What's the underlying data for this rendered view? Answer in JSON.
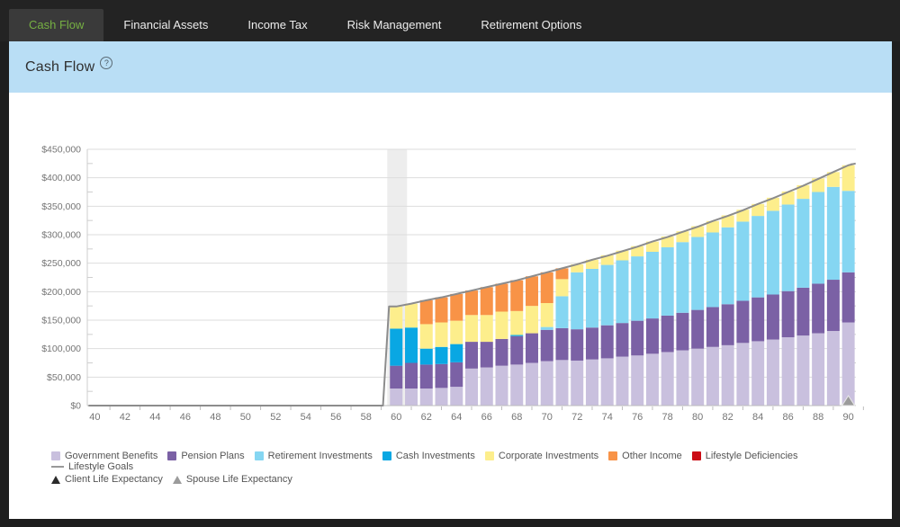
{
  "tabs": [
    {
      "label": "Cash Flow",
      "active": true
    },
    {
      "label": "Financial Assets",
      "active": false
    },
    {
      "label": "Income Tax",
      "active": false
    },
    {
      "label": "Risk Management",
      "active": false
    },
    {
      "label": "Retirement Options",
      "active": false
    }
  ],
  "header": {
    "title": "Cash Flow",
    "help_icon": "?"
  },
  "colors": {
    "accent_green": "#76b043",
    "header_band": "#b9def5",
    "highlight_band": "#ededed",
    "grid": "#dddddd",
    "axis_line": "#bdbdbd",
    "axis_text": "#757575",
    "goals_line": "#8c8c8c"
  },
  "chart_data": {
    "type": "bar",
    "stacked": true,
    "title": "",
    "xlabel": "",
    "ylabel": "",
    "xlim": [
      40,
      90
    ],
    "xtick": 2,
    "ylim": [
      0,
      450000
    ],
    "ytick": 50000,
    "yminor": 25000,
    "grid": true,
    "legend_position": "bottom",
    "highlight_age": 60,
    "x": [
      60,
      61,
      62,
      63,
      64,
      65,
      66,
      67,
      68,
      69,
      70,
      71,
      72,
      73,
      74,
      75,
      76,
      77,
      78,
      79,
      80,
      81,
      82,
      83,
      84,
      85,
      86,
      87,
      88,
      89,
      90
    ],
    "series": [
      {
        "name": "Government Benefits",
        "color": "#c9c0de",
        "values": [
          30000,
          30000,
          30000,
          31000,
          33000,
          65000,
          67000,
          70000,
          72000,
          75000,
          78000,
          80000,
          79000,
          81000,
          83000,
          86000,
          88000,
          91000,
          94000,
          97000,
          100000,
          103000,
          106000,
          110000,
          113000,
          116000,
          120000,
          123000,
          127000,
          131000,
          146000
        ]
      },
      {
        "name": "Pension Plans",
        "color": "#7b61a5",
        "values": [
          40000,
          45000,
          42000,
          42000,
          43000,
          47000,
          45000,
          47000,
          50000,
          52000,
          55000,
          56000,
          55000,
          56000,
          58000,
          59000,
          61000,
          62000,
          64000,
          66000,
          68000,
          70000,
          72000,
          74000,
          77000,
          79000,
          81000,
          84000,
          87000,
          90000,
          88000
        ]
      },
      {
        "name": "Retirement Investments",
        "color": "#85d6f2",
        "values": [
          0,
          0,
          0,
          0,
          0,
          0,
          0,
          0,
          0,
          0,
          5000,
          56000,
          100000,
          103000,
          106000,
          110000,
          113000,
          117000,
          120000,
          124000,
          128000,
          131000,
          135000,
          139000,
          143000,
          147000,
          152000,
          156000,
          161000,
          163000,
          143000
        ]
      },
      {
        "name": "Cash Investments",
        "color": "#09a7e3",
        "values": [
          65000,
          62000,
          28000,
          30000,
          32000,
          0,
          0,
          0,
          2000,
          0,
          0,
          0,
          0,
          0,
          0,
          0,
          0,
          0,
          0,
          0,
          0,
          0,
          0,
          0,
          0,
          0,
          0,
          0,
          0,
          0,
          0
        ]
      },
      {
        "name": "Corporate Investments",
        "color": "#fdee8c",
        "values": [
          39000,
          42000,
          43000,
          43000,
          41000,
          47000,
          47000,
          48000,
          42000,
          48000,
          42000,
          30000,
          14000,
          16000,
          17000,
          17000,
          18000,
          18000,
          19000,
          19000,
          19000,
          20000,
          21000,
          21000,
          21000,
          23000,
          23000,
          24000,
          24000,
          26000,
          45000
        ]
      },
      {
        "name": "Other Income",
        "color": "#f89347",
        "values": [
          0,
          0,
          42000,
          44000,
          47000,
          43000,
          49000,
          49000,
          54000,
          52000,
          54000,
          19000,
          0,
          0,
          0,
          0,
          0,
          0,
          0,
          0,
          0,
          0,
          0,
          0,
          0,
          0,
          0,
          0,
          0,
          0,
          0
        ]
      },
      {
        "name": "Lifestyle Deficiencies",
        "color": "#cb0c15",
        "values": [
          0,
          0,
          0,
          0,
          0,
          0,
          0,
          0,
          0,
          0,
          0,
          0,
          0,
          0,
          0,
          0,
          0,
          0,
          0,
          0,
          0,
          0,
          0,
          0,
          0,
          0,
          0,
          0,
          0,
          0,
          0
        ]
      }
    ],
    "goals": {
      "name": "Lifestyle Goals",
      "color": "#8c8c8c",
      "zero_from_age": 40,
      "zero_to_age": 59,
      "ages": [
        60,
        61,
        62,
        63,
        64,
        65,
        66,
        67,
        68,
        69,
        70,
        71,
        72,
        73,
        74,
        75,
        76,
        77,
        78,
        79,
        80,
        81,
        82,
        83,
        84,
        85,
        86,
        87,
        88,
        89,
        90
      ],
      "values": [
        174000,
        179000,
        185000,
        190000,
        196000,
        202000,
        208000,
        214000,
        220000,
        227000,
        234000,
        241000,
        248000,
        256000,
        263000,
        271000,
        279000,
        288000,
        296000,
        305000,
        314000,
        324000,
        333000,
        343000,
        354000,
        364000,
        375000,
        386000,
        398000,
        410000,
        422000
      ]
    },
    "markers": [
      {
        "name": "Client Life Expectancy",
        "age": 90,
        "color": "#2b2b2b"
      },
      {
        "name": "Spouse Life Expectancy",
        "age": 90,
        "color": "#9b9b9b"
      }
    ]
  },
  "legend": {
    "rows": [
      [
        {
          "label": "Government Benefits",
          "marker": "square",
          "color": "#c9c0de"
        },
        {
          "label": "Pension Plans",
          "marker": "square",
          "color": "#7b61a5"
        },
        {
          "label": "Retirement Investments",
          "marker": "square",
          "color": "#85d6f2"
        },
        {
          "label": "Cash Investments",
          "marker": "square",
          "color": "#09a7e3"
        },
        {
          "label": "Corporate Investments",
          "marker": "square",
          "color": "#fdee8c"
        },
        {
          "label": "Other Income",
          "marker": "square",
          "color": "#f89347"
        },
        {
          "label": "Lifestyle Deficiencies",
          "marker": "square",
          "color": "#cb0c15"
        },
        {
          "label": "Lifestyle Goals",
          "marker": "dash",
          "color": "#999999"
        }
      ],
      [
        {
          "label": "Client Life Expectancy",
          "marker": "triangle",
          "color": "#2b2b2b"
        },
        {
          "label": "Spouse Life Expectancy",
          "marker": "triangle",
          "color": "#9b9b9b"
        }
      ]
    ]
  }
}
